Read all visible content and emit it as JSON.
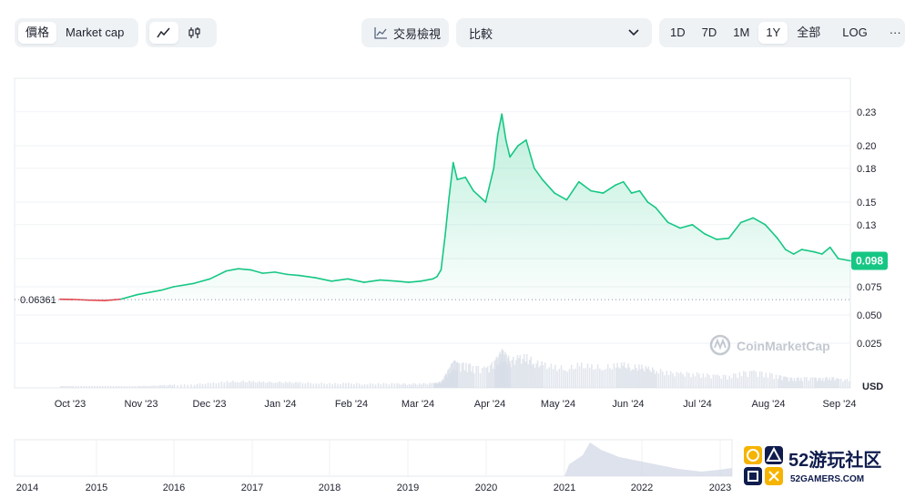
{
  "toolbar": {
    "mode_tabs": [
      "價格",
      "Market cap"
    ],
    "active_mode": "價格",
    "chart_style_icons": [
      "line-chart-icon",
      "candlestick-icon"
    ],
    "trading_view_label": "交易檢視",
    "compare_label": "比較",
    "ranges": [
      "1D",
      "7D",
      "1M",
      "1Y",
      "全部"
    ],
    "active_range": "1Y",
    "log_label": "LOG",
    "more_label": "···"
  },
  "chart_data": {
    "type": "area",
    "y_axis": {
      "ticks": [
        0.025,
        0.05,
        0.075,
        0.1,
        0.13,
        0.15,
        0.18,
        0.2,
        0.23
      ],
      "tick_labels": [
        "0.025",
        "0.050",
        "0.075",
        "0.10",
        "0.13",
        "0.15",
        "0.18",
        "0.20",
        "0.23"
      ],
      "ylim": [
        0,
        0.25
      ],
      "unit_label": "USD"
    },
    "x_axis": {
      "tick_labels": [
        "Oct '23",
        "Nov '23",
        "Dec '23",
        "Jan '24",
        "Feb '24",
        "Mar '24",
        "Apr '24",
        "May '24",
        "Jun '24",
        "Jul '24",
        "Aug '24",
        "Sep '24"
      ]
    },
    "baseline": {
      "value": 0.06361,
      "label": "0.06361"
    },
    "current": {
      "value": 0.098,
      "label": "0.098"
    },
    "series": [
      {
        "x": [
          2023.705,
          2023.72,
          2023.74,
          2023.76,
          2023.78,
          2023.8,
          2023.815,
          2023.83,
          2023.845,
          2023.87,
          2023.89,
          2023.91,
          2023.925,
          2023.94,
          2023.955,
          2023.97,
          2023.985,
          2024.0,
          2024.02,
          2024.04,
          2024.06,
          2024.08,
          2024.1,
          2024.12,
          2024.135,
          2024.15,
          2024.165,
          2024.17,
          2024.175,
          2024.18,
          2024.185,
          2024.19,
          2024.195,
          2024.205,
          2024.215,
          2024.23,
          2024.24,
          2024.245,
          2024.25,
          2024.255,
          2024.26,
          2024.27,
          2024.28,
          2024.29,
          2024.3,
          2024.315,
          2024.33,
          2024.345,
          2024.36,
          2024.375,
          2024.39,
          2024.4,
          2024.41,
          2024.42,
          2024.43,
          2024.44,
          2024.455,
          2024.47,
          2024.485,
          2024.5,
          2024.515,
          2024.53,
          2024.545,
          2024.56,
          2024.575,
          2024.59,
          2024.6,
          2024.61,
          2024.62,
          2024.635,
          2024.645,
          2024.655,
          2024.665,
          2024.68
        ],
        "y": [
          0.064,
          0.0638,
          0.0632,
          0.0628,
          0.064,
          0.068,
          0.07,
          0.072,
          0.075,
          0.078,
          0.082,
          0.089,
          0.091,
          0.09,
          0.087,
          0.088,
          0.086,
          0.085,
          0.083,
          0.08,
          0.082,
          0.079,
          0.081,
          0.08,
          0.079,
          0.08,
          0.082,
          0.084,
          0.09,
          0.12,
          0.155,
          0.185,
          0.17,
          0.172,
          0.16,
          0.15,
          0.18,
          0.21,
          0.228,
          0.205,
          0.19,
          0.2,
          0.205,
          0.18,
          0.17,
          0.158,
          0.152,
          0.168,
          0.16,
          0.158,
          0.165,
          0.168,
          0.158,
          0.16,
          0.15,
          0.145,
          0.132,
          0.127,
          0.13,
          0.122,
          0.117,
          0.118,
          0.132,
          0.136,
          0.13,
          0.118,
          0.108,
          0.104,
          0.108,
          0.106,
          0.104,
          0.11,
          0.1,
          0.098
        ]
      }
    ],
    "mini_chart": {
      "x_tick_labels": [
        "2014",
        "2015",
        "2016",
        "2017",
        "2018",
        "2019",
        "2020",
        "2021",
        "2022",
        "2023"
      ]
    }
  },
  "watermark": {
    "text": "CoinMarketCap"
  },
  "logo": {
    "big": "52游玩社区",
    "small": "52GAMERS.COM"
  },
  "colors": {
    "up": "#16c784",
    "down": "#ea3943",
    "grid": "#eff2f5"
  }
}
